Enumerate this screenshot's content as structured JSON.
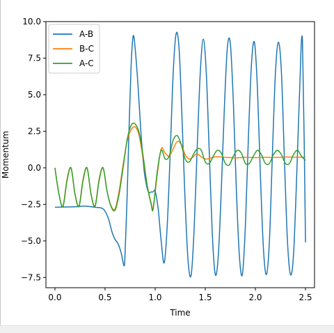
{
  "chart_data": {
    "type": "line",
    "title": "",
    "xlabel": "Time",
    "ylabel": "Momentum",
    "xlim": [
      -0.09,
      2.59
    ],
    "ylim": [
      -8.2,
      10.0
    ],
    "xticks": [
      0.0,
      0.5,
      1.0,
      1.5,
      2.0,
      2.5
    ],
    "xtick_labels": [
      "0.0",
      "0.5",
      "1.0",
      "1.5",
      "2.0",
      "2.5"
    ],
    "yticks": [
      -7.5,
      -5.0,
      -2.5,
      0.0,
      2.5,
      5.0,
      7.5,
      10.0
    ],
    "ytick_labels": [
      "−7.5",
      "−5.0",
      "−2.5",
      "0.0",
      "2.5",
      "5.0",
      "7.5",
      "10.0"
    ],
    "grid": false,
    "legend_position": "top-left",
    "series": [
      {
        "name": "A-B",
        "color": "#1f77b4",
        "x": [
          0.0,
          0.1,
          0.2,
          0.3,
          0.4,
          0.48,
          0.53,
          0.57,
          0.6,
          0.63,
          0.66,
          0.69,
          0.7,
          0.72,
          0.74,
          0.76,
          0.78,
          0.8,
          0.83,
          0.86,
          0.89,
          0.92,
          0.94,
          0.96,
          0.98,
          1.0,
          1.03,
          1.06,
          1.09,
          1.12,
          1.15,
          1.18,
          1.21,
          1.24,
          1.27,
          1.3,
          1.33,
          1.36,
          1.39,
          1.42,
          1.45,
          1.48,
          1.51,
          1.54,
          1.57,
          1.6,
          1.63,
          1.66,
          1.69,
          1.72,
          1.75,
          1.78,
          1.81,
          1.84,
          1.87,
          1.9,
          1.93,
          1.96,
          1.99,
          2.02,
          2.05,
          2.08,
          2.11,
          2.14,
          2.17,
          2.2,
          2.23,
          2.26,
          2.29,
          2.32,
          2.35,
          2.38,
          2.41,
          2.44,
          2.47,
          2.5
        ],
        "y": [
          -2.7,
          -2.68,
          -2.66,
          -2.62,
          -2.7,
          -2.8,
          -3.4,
          -4.4,
          -4.9,
          -5.2,
          -5.8,
          -6.7,
          -5.8,
          -2.0,
          2.8,
          7.0,
          9.0,
          8.2,
          5.5,
          2.2,
          -0.2,
          -1.4,
          -1.7,
          -1.65,
          -1.65,
          -1.6,
          -2.8,
          -5.0,
          -6.5,
          -4.0,
          1.0,
          6.5,
          9.2,
          8.0,
          3.0,
          -2.5,
          -6.5,
          -7.3,
          -4.0,
          1.5,
          6.5,
          8.8,
          6.5,
          1.0,
          -4.5,
          -7.3,
          -6.0,
          -1.5,
          4.0,
          8.2,
          8.5,
          4.5,
          -1.5,
          -6.0,
          -7.3,
          -4.0,
          2.0,
          7.0,
          8.6,
          5.5,
          -0.5,
          -5.5,
          -7.3,
          -5.0,
          1.0,
          6.5,
          8.6,
          6.5,
          0.5,
          -5.0,
          -7.3,
          -6.0,
          -1.0,
          5.0,
          8.6,
          -5.1
        ]
      },
      {
        "name": "B-C",
        "color": "#ff7f0e",
        "x": [
          0.0,
          0.04,
          0.08,
          0.12,
          0.16,
          0.2,
          0.24,
          0.28,
          0.32,
          0.36,
          0.4,
          0.44,
          0.48,
          0.52,
          0.56,
          0.6,
          0.64,
          0.68,
          0.72,
          0.76,
          0.8,
          0.84,
          0.88,
          0.92,
          0.96,
          0.98,
          1.02,
          1.06,
          1.1,
          1.14,
          1.18,
          1.22,
          1.26,
          1.3,
          1.34,
          1.38,
          1.42,
          1.5,
          1.6,
          1.7,
          1.8,
          1.9,
          2.0,
          2.1,
          2.2,
          2.3,
          2.4,
          2.5
        ],
        "y": [
          0.0,
          -1.8,
          -2.6,
          -0.8,
          0.0,
          -1.8,
          -2.6,
          -0.8,
          0.0,
          -1.8,
          -2.6,
          -0.8,
          0.0,
          -1.6,
          -2.6,
          -2.8,
          -1.6,
          0.2,
          1.8,
          2.6,
          2.8,
          2.2,
          0.6,
          -1.2,
          -2.4,
          -2.75,
          -0.5,
          1.3,
          1.0,
          0.8,
          1.3,
          1.8,
          1.6,
          0.9,
          0.6,
          0.75,
          0.95,
          0.6,
          0.75,
          0.72,
          0.68,
          0.72,
          0.7,
          0.72,
          0.71,
          0.74,
          0.73,
          0.72
        ]
      },
      {
        "name": "A-C",
        "color": "#2ca02c",
        "x": [
          0.0,
          0.04,
          0.08,
          0.12,
          0.16,
          0.2,
          0.24,
          0.28,
          0.32,
          0.36,
          0.4,
          0.44,
          0.48,
          0.52,
          0.56,
          0.6,
          0.64,
          0.68,
          0.72,
          0.76,
          0.8,
          0.84,
          0.88,
          0.92,
          0.96,
          0.98,
          1.02,
          1.06,
          1.1,
          1.14,
          1.18,
          1.22,
          1.26,
          1.3,
          1.34,
          1.38,
          1.42,
          1.46,
          1.5,
          1.54,
          1.58,
          1.62,
          1.66,
          1.7,
          1.74,
          1.78,
          1.82,
          1.86,
          1.9,
          1.94,
          1.98,
          2.02,
          2.06,
          2.1,
          2.14,
          2.18,
          2.22,
          2.26,
          2.3,
          2.34,
          2.38,
          2.42,
          2.46,
          2.5
        ],
        "y": [
          0.0,
          -1.8,
          -2.65,
          -0.9,
          0.0,
          -1.8,
          -2.65,
          -0.9,
          0.0,
          -1.8,
          -2.65,
          -0.9,
          0.0,
          -1.6,
          -2.65,
          -2.9,
          -1.8,
          0.0,
          1.9,
          2.9,
          3.0,
          2.4,
          0.8,
          -1.2,
          -2.5,
          -2.8,
          -0.3,
          1.2,
          0.6,
          0.8,
          1.9,
          2.2,
          1.6,
          0.6,
          0.4,
          0.9,
          1.3,
          1.2,
          0.4,
          0.3,
          0.8,
          1.2,
          1.0,
          0.3,
          0.2,
          0.8,
          1.2,
          1.0,
          0.3,
          0.3,
          0.8,
          1.2,
          0.9,
          0.3,
          0.3,
          0.9,
          1.2,
          0.9,
          0.3,
          0.3,
          0.9,
          1.2,
          0.8,
          0.5
        ]
      }
    ]
  }
}
